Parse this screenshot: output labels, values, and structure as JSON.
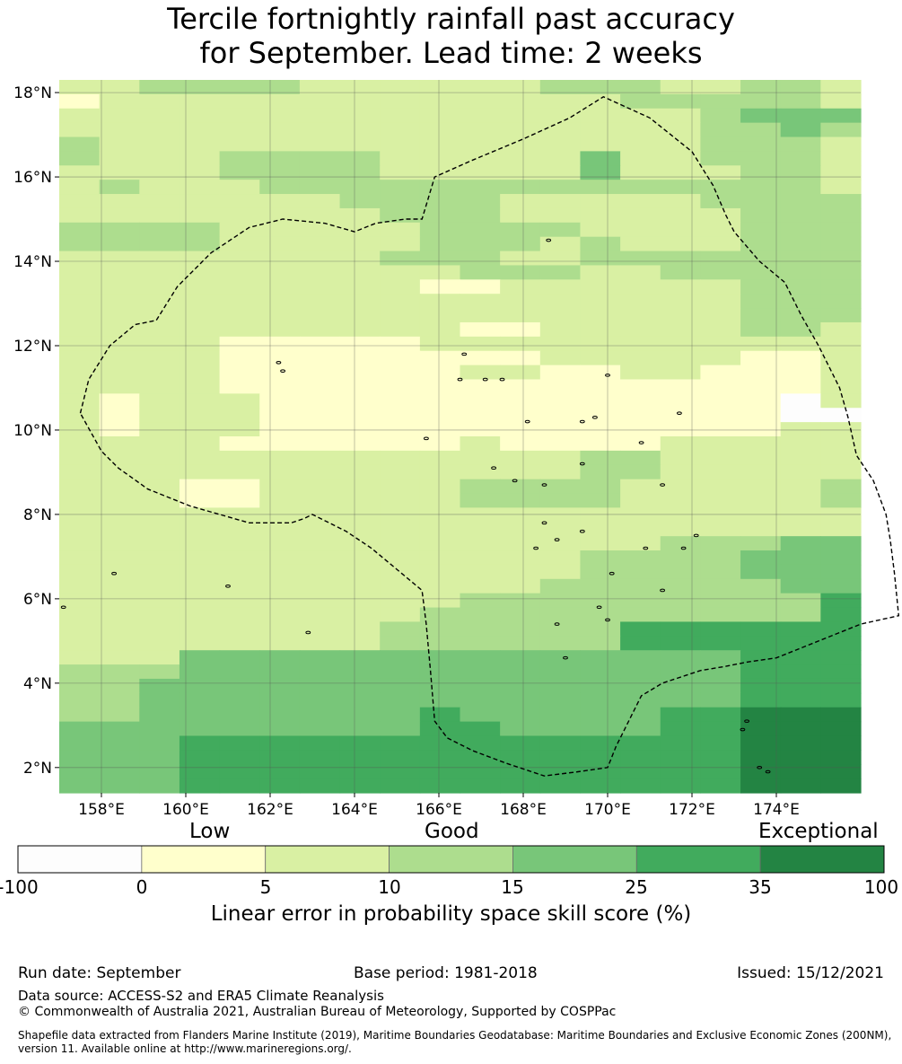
{
  "title_line1": "Tercile fortnightly rainfall past accuracy",
  "title_line2": "for September. Lead time: 2 weeks",
  "map": {
    "lat_labels": [
      "18°N",
      "16°N",
      "14°N",
      "12°N",
      "10°N",
      "8°N",
      "6°N",
      "4°N",
      "2°N"
    ],
    "lon_labels": [
      "158°E",
      "160°E",
      "162°E",
      "164°E",
      "166°E",
      "168°E",
      "170°E",
      "172°E",
      "174°E"
    ],
    "lat_values": [
      18,
      16,
      14,
      12,
      10,
      8,
      6,
      4,
      2
    ],
    "lon_values": [
      158,
      160,
      162,
      164,
      166,
      168,
      170,
      172,
      174
    ],
    "extent": {
      "lon": [
        157,
        176
      ],
      "lat": [
        1.4,
        18.3
      ]
    },
    "grid_lines": true,
    "palette": [
      "#fdfdfd",
      "#ffffcc",
      "#d9f0a3",
      "#addd8e",
      "#78c679",
      "#41ab5d",
      "#238443"
    ],
    "class_rows": [
      "22333322222233322332",
      "12222222222222333332",
      "22222222222222223444",
      "22222222222222223343",
      "32222222222222223332",
      "32223333222224223332",
      "22223333222224222332",
      "23222333333333333332",
      "22222223333222223333",
      "22222222333222222333",
      "33332222233332222333",
      "33332222233323222333",
      "22222222333223333333",
      "22222222223332233333",
      "22222222211222222333",
      "22222222222222222333",
      "22222222222222222333",
      "22222222221122222332",
      "22221111122222222222",
      "22221111111122222112",
      "22221111112211221112",
      "22221111111111111112",
      "21222111111111111102",
      "21222111111111111100",
      "21222111111111111122",
      "22221111112111122222",
      "22222222222223322222",
      "22222222222223322222",
      "22211222223333222223",
      "22211222223333222223",
      "22222222222222222222",
      "22222222222222222222",
      "22222222222222233344",
      "22222222222223333444",
      "22222222222223333444",
      "22222222222233333344",
      "22222222223333333335",
      "22222222233333333335",
      "22222222333333555555",
      "22222222333333555555",
      "22244444444444444555",
      "33344444444444444555",
      "33444444444444444555",
      "33444444444444444555",
      "33444444454444455666",
      "44444444455444455666",
      "44455555555555555666",
      "44455555555555555666",
      "44455555555555555666",
      "44455555555555555666"
    ],
    "eez_boundary": [
      [
        157.5,
        10.4
      ],
      [
        157.7,
        11.2
      ],
      [
        158.2,
        12
      ],
      [
        158.8,
        12.5
      ],
      [
        159.3,
        12.6
      ],
      [
        159.8,
        13.4
      ],
      [
        160.6,
        14.2
      ],
      [
        161.5,
        14.8
      ],
      [
        162.3,
        15
      ],
      [
        163.3,
        14.9
      ],
      [
        164,
        14.7
      ],
      [
        164.5,
        14.9
      ],
      [
        165.2,
        15
      ],
      [
        165.6,
        15
      ],
      [
        165.9,
        16
      ],
      [
        166.8,
        16.4
      ],
      [
        168,
        16.9
      ],
      [
        169.1,
        17.4
      ],
      [
        169.9,
        17.9
      ],
      [
        171,
        17.4
      ],
      [
        172,
        16.6
      ],
      [
        172.5,
        15.8
      ],
      [
        172.8,
        15.1
      ],
      [
        173,
        14.7
      ],
      [
        173.6,
        14
      ],
      [
        174.2,
        13.5
      ],
      [
        174.6,
        12.7
      ],
      [
        175,
        12
      ],
      [
        175.5,
        11
      ],
      [
        175.7,
        10.3
      ],
      [
        175.9,
        9.4
      ],
      [
        176.3,
        8.8
      ],
      [
        176.6,
        8
      ],
      [
        176.7,
        7.4
      ],
      [
        176.8,
        6.6
      ],
      [
        176.9,
        5.6
      ],
      [
        176,
        5.4
      ],
      [
        175,
        5
      ],
      [
        174,
        4.6
      ],
      [
        173.3,
        4.5
      ],
      [
        172.8,
        4.4
      ],
      [
        172.2,
        4.3
      ],
      [
        171.3,
        4
      ],
      [
        170.8,
        3.7
      ],
      [
        170.2,
        2.5
      ],
      [
        170,
        2
      ],
      [
        169.3,
        1.9
      ],
      [
        168.5,
        1.8
      ],
      [
        167.6,
        2.1
      ],
      [
        166.8,
        2.4
      ],
      [
        166.2,
        2.7
      ],
      [
        165.9,
        3.1
      ],
      [
        165.8,
        4.3
      ],
      [
        165.7,
        5.4
      ],
      [
        165.6,
        6.2
      ],
      [
        165,
        6.7
      ],
      [
        164.4,
        7.2
      ],
      [
        163.8,
        7.6
      ],
      [
        163.2,
        7.9
      ],
      [
        163,
        8
      ],
      [
        162.8,
        7.9
      ],
      [
        162.5,
        7.8
      ],
      [
        161.5,
        7.8
      ],
      [
        160.8,
        8
      ],
      [
        160.1,
        8.2
      ],
      [
        159.6,
        8.4
      ],
      [
        159.1,
        8.6
      ],
      [
        158.4,
        9.1
      ],
      [
        158,
        9.5
      ],
      [
        157.5,
        10.4
      ]
    ],
    "islands": [
      [
        166.5,
        11.2
      ],
      [
        167.1,
        11.2
      ],
      [
        166.6,
        11.8
      ],
      [
        162.2,
        11.6
      ],
      [
        162.3,
        11.4
      ],
      [
        168.5,
        8.7
      ],
      [
        167.8,
        8.8
      ],
      [
        167.3,
        9.1
      ],
      [
        168.5,
        7.8
      ],
      [
        168.3,
        7.2
      ],
      [
        168.8,
        7.4
      ],
      [
        169.4,
        7.6
      ],
      [
        170.9,
        7.2
      ],
      [
        171.8,
        7.2
      ],
      [
        171.3,
        6.2
      ],
      [
        170.1,
        6.6
      ],
      [
        168.8,
        5.4
      ],
      [
        169.8,
        5.8
      ],
      [
        170,
        5.5
      ],
      [
        169,
        4.6
      ],
      [
        173.3,
        3.1
      ],
      [
        173.2,
        2.9
      ],
      [
        173.6,
        2
      ],
      [
        173.8,
        1.9
      ],
      [
        170.8,
        9.7
      ],
      [
        169.4,
        9.2
      ],
      [
        171.3,
        8.7
      ],
      [
        172.1,
        7.5
      ],
      [
        158.3,
        6.6
      ],
      [
        161,
        6.3
      ],
      [
        157.1,
        5.8
      ],
      [
        162.9,
        5.2
      ],
      [
        165.7,
        9.8
      ],
      [
        168.1,
        10.2
      ],
      [
        169.4,
        10.2
      ],
      [
        169.7,
        10.3
      ],
      [
        171.7,
        10.4
      ],
      [
        170,
        11.3
      ],
      [
        167.5,
        11.2
      ],
      [
        168.6,
        14.5
      ]
    ]
  },
  "colorbar": {
    "category_labels": [
      "Low",
      "Good",
      "Exceptional"
    ],
    "ticks": [
      "-100",
      "0",
      "5",
      "10",
      "15",
      "25",
      "35",
      "100"
    ],
    "colors": [
      "#fdfdfd",
      "#ffffcc",
      "#d9f0a3",
      "#addd8e",
      "#78c679",
      "#41ab5d",
      "#238443"
    ],
    "label": "Linear error in probability space skill score (%)"
  },
  "footer": {
    "run_date": "Run date: September",
    "base_period": "Base period: 1981-2018",
    "issued": "Issued: 15/12/2021",
    "data_source": "Data source: ACCESS-S2 and ERA5 Climate Reanalysis",
    "copyright": "© Commonwealth of Australia 2021, Australian Bureau of Meteorology, Supported by COSPPac",
    "shapefile_line1": "Shapefile data extracted from Flanders Marine Institute (2019), Maritime Boundaries Geodatabase: Maritime Boundaries and Exclusive Economic Zones (200NM),",
    "shapefile_line2": "version 11. Available online at http://www.marineregions.org/."
  }
}
